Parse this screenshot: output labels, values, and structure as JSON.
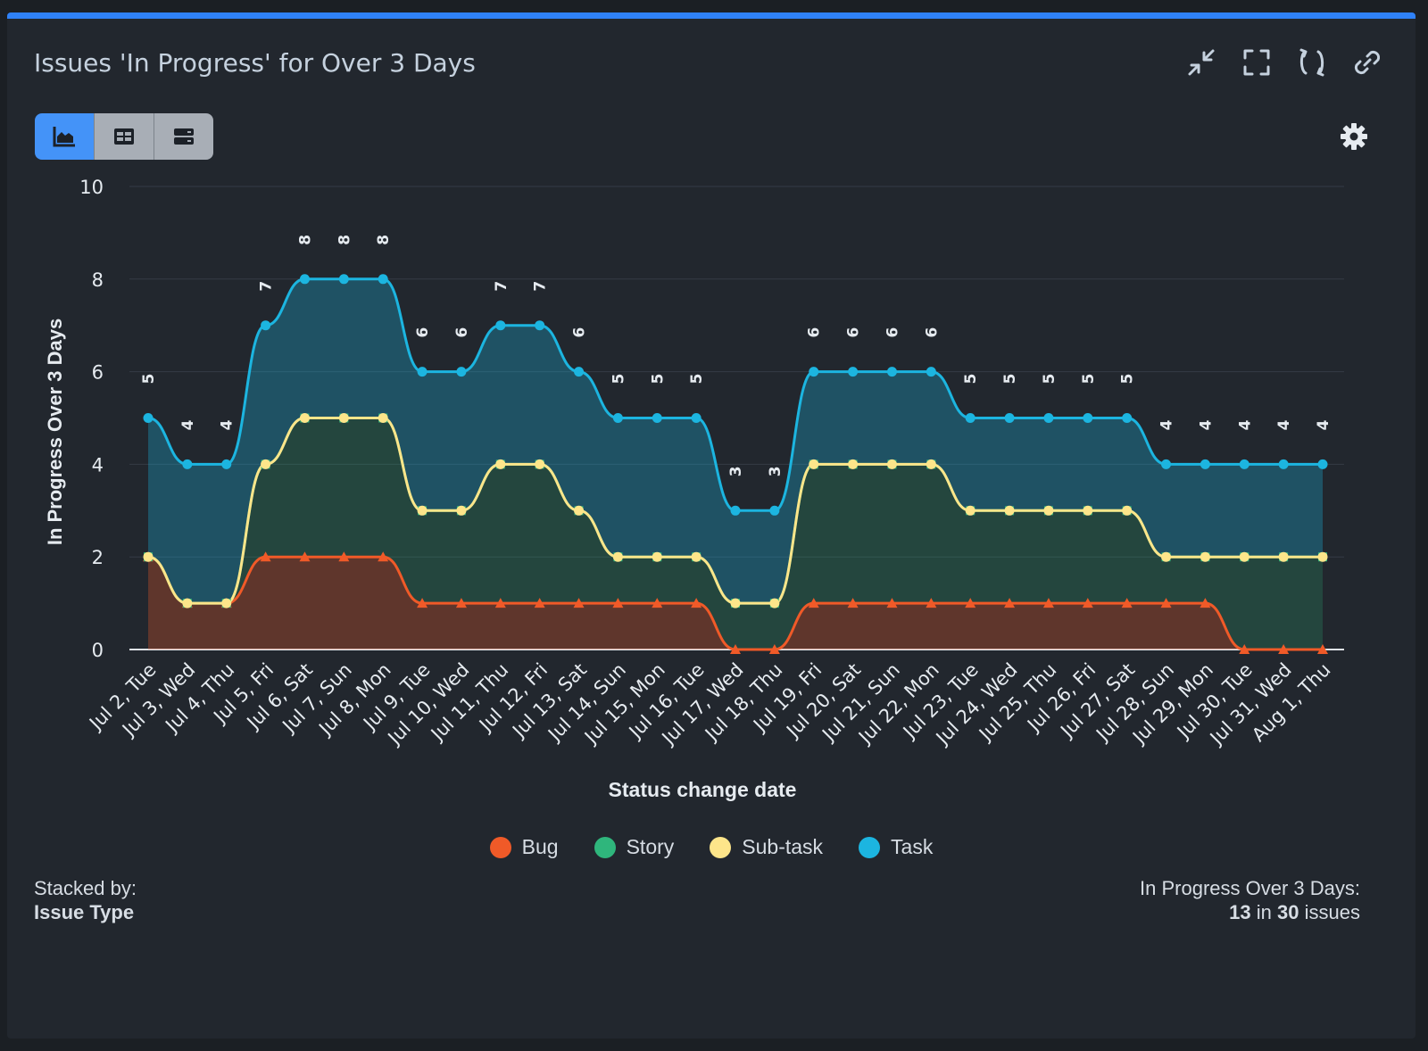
{
  "header": {
    "title": "Issues 'In Progress' for Over 3 Days"
  },
  "toolbar": {
    "icons": [
      "collapse-icon",
      "fullscreen-icon",
      "refresh-icon",
      "link-icon"
    ],
    "views": [
      "chart-view-icon",
      "table-view-icon",
      "list-view-icon"
    ],
    "active_view": "chart-view-icon",
    "settings_icon": "gear-icon"
  },
  "colors": {
    "accent": "#2f81f7",
    "bug": "#f05a28",
    "story": "#2fb67c",
    "subtask": "#fde58a",
    "task": "#1cb5e0"
  },
  "chart_data": {
    "type": "area",
    "stacked": true,
    "ylabel": "In Progress Over 3 Days",
    "xlabel": "Status change date",
    "ylim": [
      0,
      10
    ],
    "yticks": [
      0,
      2,
      4,
      6,
      8,
      10
    ],
    "grid": true,
    "legend_position": "bottom",
    "categories": [
      "Jul 2, Tue",
      "Jul 3, Wed",
      "Jul 4, Thu",
      "Jul 5, Fri",
      "Jul 6, Sat",
      "Jul 7, Sun",
      "Jul 8, Mon",
      "Jul 9, Tue",
      "Jul 10, Wed",
      "Jul 11, Thu",
      "Jul 12, Fri",
      "Jul 13, Sat",
      "Jul 14, Sun",
      "Jul 15, Mon",
      "Jul 16, Tue",
      "Jul 17, Wed",
      "Jul 18, Thu",
      "Jul 19, Fri",
      "Jul 20, Sat",
      "Jul 21, Sun",
      "Jul 22, Mon",
      "Jul 23, Tue",
      "Jul 24, Wed",
      "Jul 25, Thu",
      "Jul 26, Fri",
      "Jul 27, Sat",
      "Jul 28, Sun",
      "Jul 29, Mon",
      "Jul 30, Tue",
      "Jul 31, Wed",
      "Aug 1, Thu"
    ],
    "series": [
      {
        "name": "Bug",
        "color": "#f05a28",
        "marker": "triangle",
        "values": [
          2,
          1,
          1,
          2,
          2,
          2,
          2,
          1,
          1,
          1,
          1,
          1,
          1,
          1,
          1,
          0,
          0,
          1,
          1,
          1,
          1,
          1,
          1,
          1,
          1,
          1,
          1,
          1,
          0,
          0,
          0
        ]
      },
      {
        "name": "Story",
        "color": "#2fb67c",
        "marker": "square",
        "values": [
          0,
          0,
          0,
          2,
          3,
          3,
          3,
          2,
          2,
          3,
          3,
          2,
          1,
          1,
          1,
          1,
          1,
          3,
          3,
          3,
          3,
          2,
          2,
          2,
          2,
          2,
          1,
          1,
          2,
          2,
          2
        ]
      },
      {
        "name": "Sub-task",
        "color": "#fde58a",
        "marker": "circle",
        "values": [
          0,
          0,
          0,
          0,
          0,
          0,
          0,
          0,
          0,
          0,
          0,
          0,
          0,
          0,
          0,
          0,
          0,
          0,
          0,
          0,
          0,
          0,
          0,
          0,
          0,
          0,
          0,
          0,
          0,
          0,
          0
        ]
      },
      {
        "name": "Task",
        "color": "#1cb5e0",
        "marker": "circle",
        "values": [
          3,
          3,
          3,
          3,
          3,
          3,
          3,
          3,
          3,
          3,
          3,
          3,
          3,
          3,
          3,
          2,
          2,
          2,
          2,
          2,
          2,
          2,
          2,
          2,
          2,
          2,
          2,
          2,
          2,
          2,
          2
        ]
      }
    ],
    "totals": [
      5,
      4,
      4,
      7,
      8,
      8,
      8,
      6,
      6,
      7,
      7,
      6,
      5,
      5,
      5,
      3,
      3,
      6,
      6,
      6,
      6,
      5,
      5,
      5,
      5,
      5,
      4,
      4,
      4,
      4,
      4
    ]
  },
  "footer": {
    "stacked_by_label": "Stacked by:",
    "stacked_by_value": "Issue Type",
    "summary_label": "In Progress Over 3 Days:",
    "summary_count": "13",
    "summary_in": "in",
    "summary_total": "30",
    "summary_unit": "issues"
  }
}
